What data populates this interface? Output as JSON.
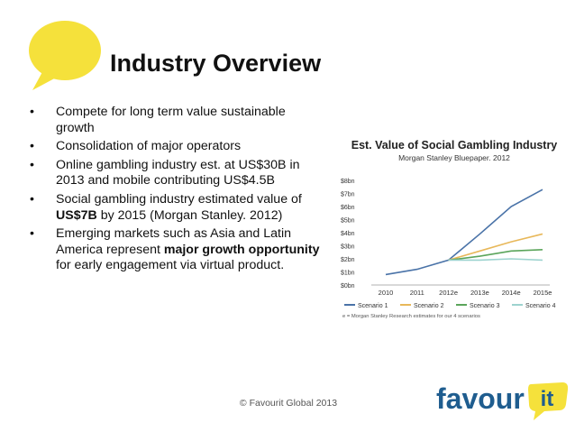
{
  "title": "Industry Overview",
  "bullets": [
    {
      "segments": [
        {
          "text": "Compete for long term value sustainable growth",
          "bold": false
        }
      ]
    },
    {
      "segments": [
        {
          "text": "Consolidation of major operators",
          "bold": false
        }
      ]
    },
    {
      "segments": [
        {
          "text": "Online gambling industry est. at US$30B in 2013 and mobile contributing US$4.5B",
          "bold": false
        }
      ]
    },
    {
      "segments": [
        {
          "text": "Social gambling industry estimated value of ",
          "bold": false
        },
        {
          "text": "US$7B",
          "bold": true
        },
        {
          "text": " by 2015 (Morgan Stanley. 2012)",
          "bold": false
        }
      ]
    },
    {
      "segments": [
        {
          "text": "Emerging markets such as Asia and Latin America represent ",
          "bold": false
        },
        {
          "text": "major growth opportunity",
          "bold": true
        },
        {
          "text": " for early engagement via virtual product.",
          "bold": false
        }
      ]
    }
  ],
  "footer": "© Favourit Global 2013",
  "logo": {
    "text_main": "favour",
    "text_badge": "it"
  },
  "colors": {
    "bubble": "#f5e13b",
    "logo_blue": "#1f5d8f",
    "logo_badge": "#f5e13b"
  },
  "chart_data": {
    "type": "line",
    "title": "Est. Value of Social Gambling Industry",
    "subtitle": "Morgan Stanley Bluepaper. 2012",
    "categories": [
      "2010",
      "2011",
      "2012e",
      "2013e",
      "2014e",
      "2015e"
    ],
    "y_ticks": [
      "$0bn",
      "$1bn",
      "$2bn",
      "$3bn",
      "$4bn",
      "$5bn",
      "$6bn",
      "$7bn",
      "$8bn"
    ],
    "ylim": [
      0,
      8
    ],
    "grid": false,
    "series": [
      {
        "name": "Scenario 1",
        "color": "#4a73a8",
        "values": [
          0.8,
          1.2,
          1.9,
          3.9,
          6.0,
          7.3
        ]
      },
      {
        "name": "Scenario 2",
        "color": "#e8b85a",
        "values": [
          null,
          null,
          1.9,
          2.6,
          3.3,
          3.9
        ]
      },
      {
        "name": "Scenario 3",
        "color": "#5ba55b",
        "values": [
          null,
          null,
          1.9,
          2.2,
          2.6,
          2.7
        ]
      },
      {
        "name": "Scenario 4",
        "color": "#9dd3cf",
        "values": [
          null,
          null,
          1.9,
          1.9,
          2.0,
          1.9
        ]
      }
    ],
    "note": "e = Morgan Stanley Research estimates for our 4 scenarios"
  }
}
